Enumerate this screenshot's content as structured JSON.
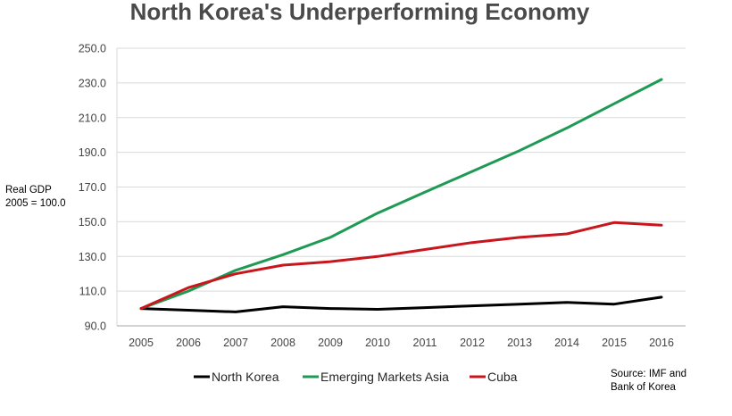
{
  "chart_data": {
    "type": "line",
    "title": "North Korea's Underperforming Economy",
    "ylabel_lines": [
      "Real GDP",
      "2005 = 100.0"
    ],
    "xlabel": "",
    "x": [
      "2005",
      "2006",
      "2007",
      "2008",
      "2009",
      "2010",
      "2011",
      "2012",
      "2013",
      "2014",
      "2015",
      "2016"
    ],
    "ylim": [
      90,
      250
    ],
    "yticks": [
      "90.0",
      "110.0",
      "130.0",
      "150.0",
      "170.0",
      "190.0",
      "210.0",
      "230.0",
      "250.0"
    ],
    "grid": "horizontal",
    "legend_position": "bottom",
    "series": [
      {
        "name": "North Korea",
        "color": "#000000",
        "values": [
          100,
          99,
          98,
          101,
          100,
          99.5,
          100.5,
          101.5,
          102.5,
          103.5,
          102.5,
          106.5
        ]
      },
      {
        "name": "Emerging Markets Asia",
        "color": "#1e9a55",
        "values": [
          100,
          110,
          122,
          131,
          141,
          155,
          167,
          179,
          191,
          204,
          218,
          232
        ]
      },
      {
        "name": "Cuba",
        "color": "#c8161d",
        "values": [
          100,
          112,
          120,
          125,
          127,
          130,
          134,
          138,
          141,
          143,
          149.5,
          148
        ]
      }
    ],
    "source_lines": [
      "Source: IMF and",
      "Bank of Korea"
    ]
  }
}
